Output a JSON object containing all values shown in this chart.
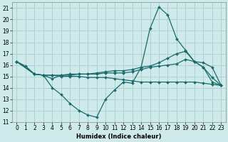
{
  "xlabel": "Humidex (Indice chaleur)",
  "background_color": "#ceeaea",
  "grid_color": "#aed0d0",
  "line_color": "#1a6b6b",
  "xlim": [
    -0.5,
    23.5
  ],
  "ylim": [
    11,
    21.5
  ],
  "xticks": [
    0,
    1,
    2,
    3,
    4,
    5,
    6,
    7,
    8,
    9,
    10,
    11,
    12,
    13,
    14,
    15,
    16,
    17,
    18,
    19,
    20,
    21,
    22,
    23
  ],
  "yticks": [
    11,
    12,
    13,
    14,
    15,
    16,
    17,
    18,
    19,
    20,
    21
  ],
  "lines": [
    {
      "x": [
        0,
        1,
        2,
        3,
        4,
        5,
        6,
        7,
        8,
        9,
        10,
        11,
        12,
        13,
        14,
        15,
        16,
        17,
        18,
        19,
        20,
        21,
        22,
        23
      ],
      "y": [
        16.3,
        15.9,
        15.2,
        15.1,
        14.0,
        13.4,
        12.6,
        12.0,
        11.6,
        11.4,
        13.0,
        13.8,
        14.5,
        14.4,
        15.8,
        19.2,
        21.1,
        20.4,
        18.3,
        17.3,
        16.3,
        15.8,
        14.9,
        14.2
      ]
    },
    {
      "x": [
        0,
        2,
        3,
        4,
        5,
        6,
        7,
        8,
        9,
        10,
        11,
        12,
        13,
        14,
        15,
        16,
        17,
        18,
        19,
        20,
        21,
        22,
        23
      ],
      "y": [
        16.3,
        15.2,
        15.1,
        14.8,
        15.1,
        15.2,
        15.2,
        15.2,
        15.3,
        15.4,
        15.5,
        15.5,
        15.6,
        15.8,
        15.9,
        16.2,
        16.6,
        17.0,
        17.2,
        16.3,
        16.2,
        15.8,
        14.2
      ]
    },
    {
      "x": [
        0,
        2,
        3,
        4,
        5,
        6,
        7,
        8,
        9,
        10,
        11,
        12,
        13,
        14,
        15,
        16,
        17,
        18,
        19,
        20,
        21,
        22,
        23
      ],
      "y": [
        16.3,
        15.2,
        15.1,
        15.1,
        15.1,
        15.1,
        15.2,
        15.2,
        15.2,
        15.3,
        15.3,
        15.3,
        15.4,
        15.6,
        15.8,
        15.9,
        16.0,
        16.1,
        16.5,
        16.3,
        15.8,
        14.5,
        14.2
      ]
    },
    {
      "x": [
        0,
        2,
        3,
        4,
        5,
        6,
        7,
        8,
        9,
        10,
        11,
        12,
        13,
        14,
        15,
        16,
        17,
        18,
        19,
        20,
        21,
        22,
        23
      ],
      "y": [
        16.3,
        15.2,
        15.1,
        15.1,
        15.0,
        15.0,
        15.0,
        14.9,
        14.9,
        14.9,
        14.8,
        14.7,
        14.6,
        14.5,
        14.5,
        14.5,
        14.5,
        14.5,
        14.5,
        14.5,
        14.4,
        14.3,
        14.2
      ]
    }
  ],
  "marker": "D",
  "markersize": 2.0,
  "linewidth": 0.9,
  "tick_fontsize": 5.5,
  "xlabel_fontsize": 6.0
}
